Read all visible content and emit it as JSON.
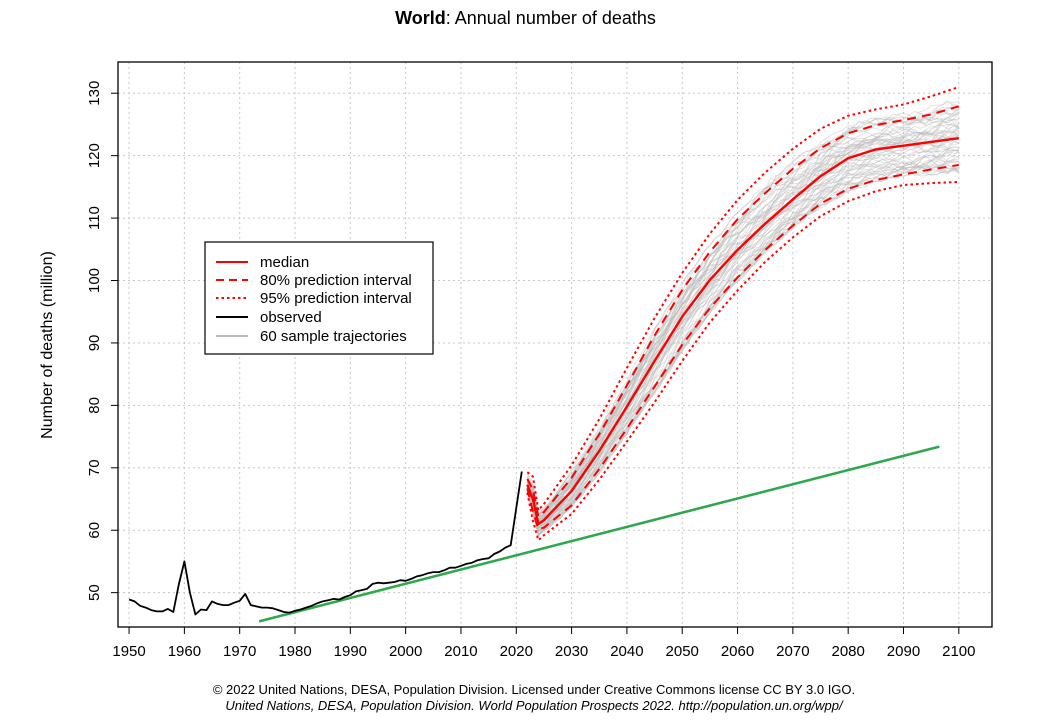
{
  "title": {
    "bold": "World",
    "rest": ": Annual number of deaths"
  },
  "footer": {
    "line1": "© 2022 United Nations, DESA, Population Division. Licensed under Creative Commons license CC BY 3.0 IGO.",
    "line2": "United Nations, DESA, Population Division. World Population Prospects 2022. http://population.un.org/wpp/"
  },
  "colors": {
    "median": "#ff0000",
    "observed": "#000000",
    "samples": "#bbbbbb",
    "trend": "#2ea84b",
    "grid": "#c8c8c8"
  },
  "chart_data": {
    "type": "line",
    "title": "World: Annual number of deaths",
    "xlabel": "",
    "ylabel": "Number of deaths (million)",
    "xlim": [
      1948,
      2106
    ],
    "ylim": [
      44.5,
      135
    ],
    "xticks": [
      1950,
      1960,
      1970,
      1980,
      1990,
      2000,
      2010,
      2020,
      2030,
      2040,
      2050,
      2060,
      2070,
      2080,
      2090,
      2100
    ],
    "yticks": [
      50,
      60,
      70,
      80,
      90,
      100,
      110,
      120,
      130
    ],
    "grid": true,
    "legend": {
      "placement": "left",
      "entries": [
        {
          "label": "median",
          "style": "solid",
          "color": "#ff0000"
        },
        {
          "label": "80% prediction interval",
          "style": "dashed",
          "color": "#ff0000"
        },
        {
          "label": "95% prediction interval",
          "style": "dotted",
          "color": "#ff0000"
        },
        {
          "label": "observed",
          "style": "solid",
          "color": "#000000"
        },
        {
          "label": "60 sample trajectories",
          "style": "solid",
          "color": "#bbbbbb"
        }
      ]
    },
    "series": [
      {
        "name": "observed",
        "x": [
          1950,
          1951,
          1952,
          1953,
          1954,
          1955,
          1956,
          1957,
          1958,
          1959,
          1960,
          1961,
          1962,
          1963,
          1964,
          1965,
          1966,
          1967,
          1968,
          1969,
          1970,
          1971,
          1972,
          1973,
          1974,
          1975,
          1976,
          1977,
          1978,
          1979,
          1980,
          1981,
          1982,
          1983,
          1984,
          1985,
          1986,
          1987,
          1988,
          1989,
          1990,
          1991,
          1992,
          1993,
          1994,
          1995,
          1996,
          1997,
          1998,
          1999,
          2000,
          2001,
          2002,
          2003,
          2004,
          2005,
          2006,
          2007,
          2008,
          2009,
          2010,
          2011,
          2012,
          2013,
          2014,
          2015,
          2016,
          2017,
          2018,
          2019,
          2020,
          2021
        ],
        "y": [
          48.9,
          48.6,
          47.9,
          47.6,
          47.2,
          47.0,
          47.0,
          47.4,
          46.9,
          51.3,
          55.0,
          50.0,
          46.5,
          47.3,
          47.2,
          48.6,
          48.2,
          48.0,
          48.0,
          48.4,
          48.7,
          49.8,
          48.0,
          47.8,
          47.6,
          47.6,
          47.5,
          47.2,
          46.9,
          46.8,
          47.1,
          47.3,
          47.6,
          47.9,
          48.3,
          48.6,
          48.8,
          49.0,
          48.9,
          49.3,
          49.6,
          50.2,
          50.4,
          50.6,
          51.4,
          51.6,
          51.5,
          51.6,
          51.7,
          52.0,
          51.9,
          52.2,
          52.6,
          52.8,
          53.1,
          53.3,
          53.3,
          53.6,
          54.0,
          54.0,
          54.3,
          54.6,
          54.8,
          55.2,
          55.4,
          55.5,
          56.2,
          56.6,
          57.2,
          57.6,
          63.6,
          69.4
        ]
      },
      {
        "name": "median",
        "x": [
          2022,
          2023,
          2024,
          2025,
          2030,
          2035,
          2040,
          2045,
          2050,
          2055,
          2060,
          2065,
          2070,
          2075,
          2080,
          2085,
          2090,
          2095,
          2100
        ],
        "y": [
          67.3,
          65.0,
          61.0,
          61.6,
          66.3,
          72.7,
          79.8,
          87.1,
          94.2,
          100.1,
          104.9,
          109.1,
          113.0,
          116.7,
          119.6,
          121.0,
          121.6,
          122.2,
          122.8
        ]
      },
      {
        "name": "80% lower",
        "x": [
          2022,
          2023,
          2024,
          2025,
          2030,
          2035,
          2040,
          2045,
          2050,
          2055,
          2060,
          2065,
          2070,
          2075,
          2080,
          2085,
          2090,
          2095,
          2100
        ],
        "y": [
          66.7,
          63.0,
          60.2,
          60.4,
          64.0,
          69.8,
          76.3,
          83.0,
          89.7,
          95.6,
          100.5,
          104.9,
          108.8,
          112.3,
          114.7,
          116.1,
          117.0,
          117.8,
          118.5
        ]
      },
      {
        "name": "80% upper",
        "x": [
          2022,
          2023,
          2024,
          2025,
          2030,
          2035,
          2040,
          2045,
          2050,
          2055,
          2060,
          2065,
          2070,
          2075,
          2080,
          2085,
          2090,
          2095,
          2100
        ],
        "y": [
          68.2,
          66.5,
          62.2,
          62.9,
          68.4,
          75.4,
          83.2,
          91.2,
          98.5,
          104.6,
          109.8,
          114.0,
          117.9,
          121.2,
          123.6,
          124.9,
          125.7,
          126.6,
          127.9
        ]
      },
      {
        "name": "95% lower",
        "x": [
          2022,
          2023,
          2024,
          2025,
          2030,
          2035,
          2040,
          2045,
          2050,
          2055,
          2060,
          2065,
          2070,
          2075,
          2080,
          2085,
          2090,
          2095,
          2100
        ],
        "y": [
          66.0,
          61.5,
          58.4,
          59.2,
          62.6,
          68.1,
          74.2,
          80.5,
          87.1,
          93.3,
          98.4,
          103.0,
          106.9,
          110.3,
          112.7,
          114.3,
          115.3,
          115.6,
          115.8
        ]
      },
      {
        "name": "95% upper",
        "x": [
          2022,
          2023,
          2024,
          2025,
          2030,
          2035,
          2040,
          2045,
          2050,
          2055,
          2060,
          2065,
          2070,
          2075,
          2080,
          2085,
          2090,
          2095,
          2100
        ],
        "y": [
          69.3,
          68.6,
          63.2,
          64.2,
          70.4,
          77.8,
          86.0,
          94.0,
          101.2,
          107.5,
          112.9,
          117.3,
          121.1,
          124.3,
          126.4,
          127.4,
          128.2,
          129.5,
          131.0
        ]
      },
      {
        "name": "trend line",
        "x": [
          1973.5,
          2096.5
        ],
        "y": [
          45.4,
          73.4
        ]
      }
    ]
  }
}
